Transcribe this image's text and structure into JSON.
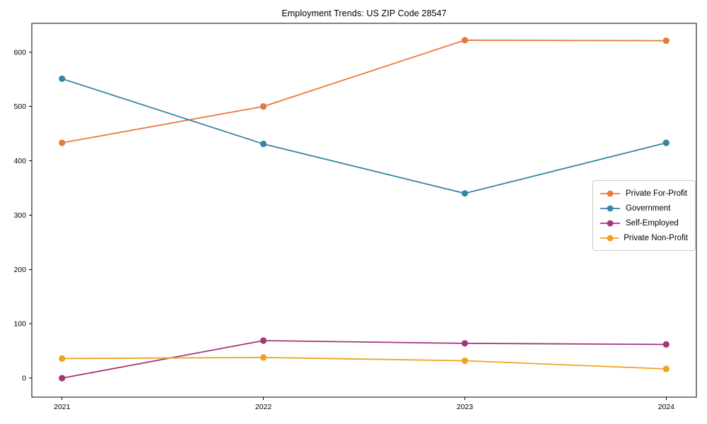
{
  "page": {
    "background": "#ffffff",
    "spine_color": "#000000",
    "legend_border_color": "#cccccc"
  },
  "chart_data": {
    "type": "line",
    "title": "Employment Trends: US ZIP Code 28547",
    "xlabel": "",
    "ylabel": "",
    "x": [
      2021,
      2022,
      2023,
      2024
    ],
    "x_tick_labels": [
      "2021",
      "2022",
      "2023",
      "2024"
    ],
    "y_ticks": [
      0,
      100,
      200,
      300,
      400,
      500,
      600
    ],
    "xlim": [
      2020.85,
      2024.15
    ],
    "ylim": [
      -35,
      653
    ],
    "grid": false,
    "legend_position": "right-middle",
    "series": [
      {
        "name": "Private For-Profit",
        "color": "#e8793e",
        "values": [
          433,
          500,
          622,
          621
        ]
      },
      {
        "name": "Government",
        "color": "#3585a4",
        "values": [
          551,
          431,
          340,
          433
        ]
      },
      {
        "name": "Self-Employed",
        "color": "#a23779",
        "values": [
          0,
          69,
          64,
          62
        ]
      },
      {
        "name": "Private Non-Profit",
        "color": "#eda221",
        "values": [
          36,
          38,
          32,
          17
        ]
      }
    ]
  }
}
